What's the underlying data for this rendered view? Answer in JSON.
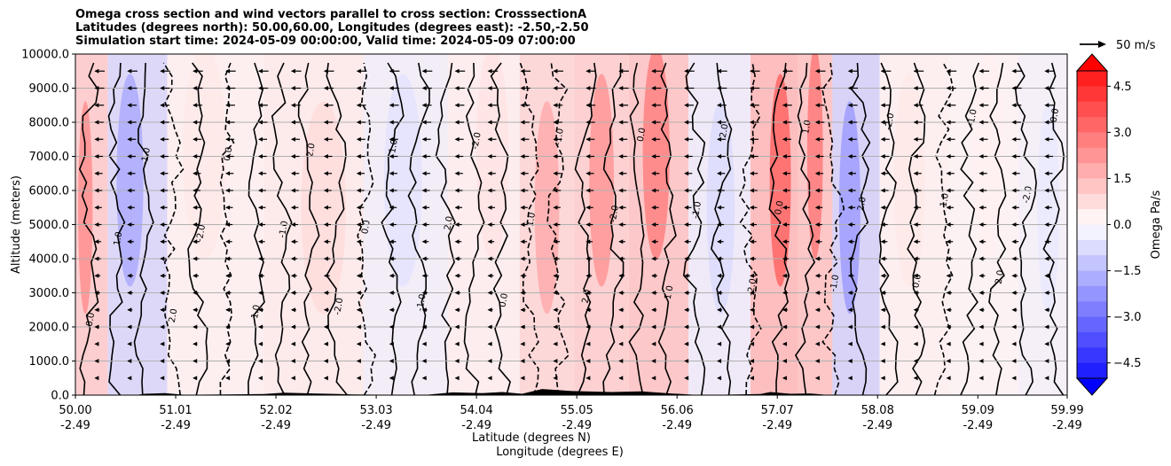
{
  "title": {
    "line1": "Omega cross section and wind vectors parallel to cross section: CrosssectionA",
    "line2": "Latitudes (degrees north): 50.00,60.00, Longitudes (degrees east): -2.50,-2.50",
    "line3": "Simulation start time: 2024-05-09 00:00:00, Valid time: 2024-05-09 07:00:00"
  },
  "chart_data": {
    "type": "heatmap",
    "ylabel": "Altitude (meters)",
    "xlabel_line1": "Latitude (degrees N)",
    "xlabel_line2": "Longitude (degrees E)",
    "ylim": [
      0,
      10000
    ],
    "y_ticks": [
      "0.0",
      "1000.0",
      "2000.0",
      "3000.0",
      "4000.0",
      "5000.0",
      "6000.0",
      "7000.0",
      "8000.0",
      "9000.0",
      "10000.0"
    ],
    "y_tick_values": [
      0,
      1000,
      2000,
      3000,
      4000,
      5000,
      6000,
      7000,
      8000,
      9000,
      10000
    ],
    "x_ticks_lat": [
      "50.00",
      "51.01",
      "52.02",
      "53.03",
      "54.04",
      "55.05",
      "56.06",
      "57.07",
      "58.08",
      "59.09",
      "59.99"
    ],
    "x_ticks_lon": [
      "-2.49",
      "-2.49",
      "-2.49",
      "-2.49",
      "-2.49",
      "-2.49",
      "-2.49",
      "-2.49",
      "-2.49",
      "-2.49",
      "-2.49"
    ],
    "x_tick_values": [
      50.0,
      51.01,
      52.02,
      53.03,
      54.04,
      55.05,
      56.06,
      57.07,
      58.08,
      59.09,
      59.99
    ],
    "xlim": [
      50.0,
      59.99
    ],
    "grid": "horizontal",
    "colorbar": {
      "label": "Omega Pa/s",
      "ticks": [
        "4.5",
        "3.0",
        "1.5",
        "0.0",
        "−1.5",
        "−3.0",
        "−4.5"
      ],
      "tick_values": [
        4.5,
        3.0,
        1.5,
        0.0,
        -1.5,
        -3.0,
        -4.5
      ],
      "range": [
        -5.0,
        5.0
      ],
      "positive_color": "#ff0000",
      "negative_color": "#0000ff",
      "extend": "both"
    },
    "quiver_key": {
      "label": "50 m/s",
      "value": 50
    },
    "omega_bands": [
      {
        "lat": 50.1,
        "value": 1.6
      },
      {
        "lat": 50.55,
        "value": -1.2
      },
      {
        "lat": 51.3,
        "value": 0.3
      },
      {
        "lat": 52.5,
        "value": 0.5
      },
      {
        "lat": 53.3,
        "value": -0.4
      },
      {
        "lat": 54.2,
        "value": 0.4
      },
      {
        "lat": 54.75,
        "value": 1.2
      },
      {
        "lat": 55.3,
        "value": 1.5
      },
      {
        "lat": 55.85,
        "value": 1.8
      },
      {
        "lat": 56.5,
        "value": -0.5
      },
      {
        "lat": 57.1,
        "value": 2.2
      },
      {
        "lat": 57.45,
        "value": 1.9
      },
      {
        "lat": 57.8,
        "value": -1.4
      },
      {
        "lat": 58.4,
        "value": 0.3
      },
      {
        "lat": 59.2,
        "value": 0.2
      },
      {
        "lat": 59.8,
        "value": -0.3
      }
    ],
    "contour_labels": [
      "0.0",
      "1.0",
      "-1.0",
      "2.0",
      "-2.0"
    ]
  }
}
